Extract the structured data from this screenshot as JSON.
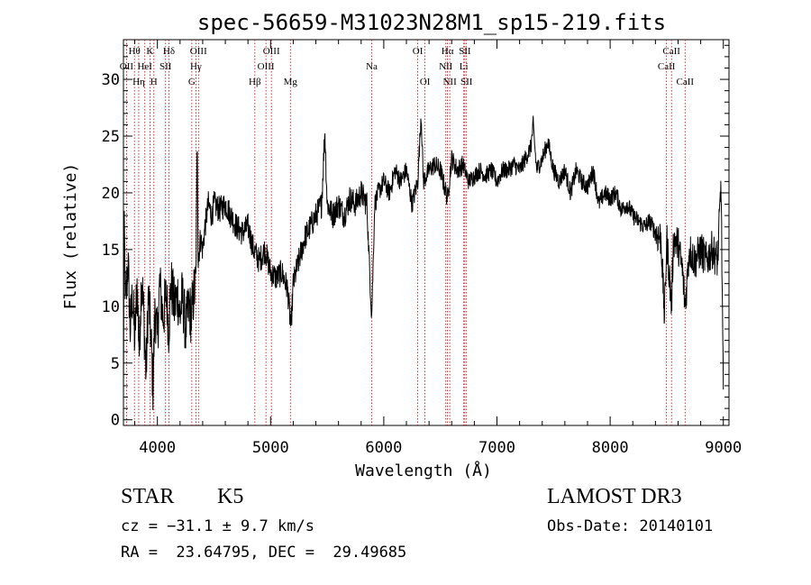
{
  "chart_data": {
    "type": "line",
    "title": "spec-56659-M31023N28M1_sp15-219.fits",
    "xlabel": "Wavelength (Å)",
    "ylabel": "Flux (relative)",
    "xlim": [
      3700,
      9050
    ],
    "ylim": [
      -0.5,
      33.5
    ],
    "xticks": [
      4000,
      5000,
      6000,
      7000,
      8000,
      9000
    ],
    "yticks": [
      0,
      5,
      10,
      15,
      20,
      25,
      30
    ],
    "grid": false,
    "line_color": "#000000",
    "marker_color": "#c00000",
    "series": [
      {
        "name": "flux",
        "anchors": [
          [
            3700,
            1
          ],
          [
            3705,
            17
          ],
          [
            3720,
            10
          ],
          [
            3740,
            14
          ],
          [
            3760,
            8
          ],
          [
            3780,
            11
          ],
          [
            3800,
            7
          ],
          [
            3820,
            12
          ],
          [
            3840,
            6
          ],
          [
            3860,
            13
          ],
          [
            3880,
            9
          ],
          [
            3900,
            4
          ],
          [
            3920,
            11
          ],
          [
            3940,
            8
          ],
          [
            3960,
            3
          ],
          [
            3980,
            10
          ],
          [
            4000,
            7
          ],
          [
            4020,
            12
          ],
          [
            4050,
            9
          ],
          [
            4080,
            11
          ],
          [
            4100,
            8
          ],
          [
            4120,
            12
          ],
          [
            4150,
            10
          ],
          [
            4180,
            11
          ],
          [
            4200,
            9
          ],
          [
            4220,
            11
          ],
          [
            4250,
            8
          ],
          [
            4280,
            10
          ],
          [
            4300,
            9
          ],
          [
            4320,
            11
          ],
          [
            4340,
            12
          ],
          [
            4352,
            25
          ],
          [
            4360,
            14
          ],
          [
            4380,
            16
          ],
          [
            4400,
            15
          ],
          [
            4420,
            17
          ],
          [
            4450,
            19
          ],
          [
            4480,
            18
          ],
          [
            4500,
            19
          ],
          [
            4550,
            18.5
          ],
          [
            4600,
            19
          ],
          [
            4650,
            18
          ],
          [
            4700,
            17
          ],
          [
            4750,
            16.5
          ],
          [
            4800,
            17
          ],
          [
            4850,
            15
          ],
          [
            4900,
            14
          ],
          [
            4950,
            15
          ],
          [
            5000,
            13
          ],
          [
            5050,
            12.5
          ],
          [
            5100,
            13
          ],
          [
            5150,
            11.5
          ],
          [
            5180,
            8
          ],
          [
            5200,
            12
          ],
          [
            5250,
            14
          ],
          [
            5300,
            16
          ],
          [
            5350,
            17
          ],
          [
            5400,
            18
          ],
          [
            5450,
            19
          ],
          [
            5480,
            25.5
          ],
          [
            5500,
            19
          ],
          [
            5550,
            18
          ],
          [
            5600,
            19
          ],
          [
            5650,
            18
          ],
          [
            5700,
            19.5
          ],
          [
            5750,
            19
          ],
          [
            5800,
            20
          ],
          [
            5850,
            19
          ],
          [
            5893,
            9
          ],
          [
            5920,
            19
          ],
          [
            5950,
            20
          ],
          [
            6000,
            21
          ],
          [
            6050,
            20
          ],
          [
            6100,
            22
          ],
          [
            6150,
            21
          ],
          [
            6200,
            22
          ],
          [
            6250,
            19
          ],
          [
            6300,
            21
          ],
          [
            6330,
            27
          ],
          [
            6350,
            21
          ],
          [
            6400,
            22
          ],
          [
            6450,
            22.5
          ],
          [
            6500,
            22
          ],
          [
            6563,
            19.5
          ],
          [
            6600,
            23
          ],
          [
            6650,
            22
          ],
          [
            6700,
            22.5
          ],
          [
            6750,
            21
          ],
          [
            6800,
            21.5
          ],
          [
            6850,
            22
          ],
          [
            6900,
            21.5
          ],
          [
            6950,
            22
          ],
          [
            7000,
            21
          ],
          [
            7050,
            22
          ],
          [
            7100,
            22
          ],
          [
            7150,
            22.5
          ],
          [
            7200,
            22
          ],
          [
            7250,
            23
          ],
          [
            7300,
            24
          ],
          [
            7320,
            26
          ],
          [
            7350,
            22
          ],
          [
            7400,
            23
          ],
          [
            7450,
            24.5
          ],
          [
            7500,
            22
          ],
          [
            7550,
            21
          ],
          [
            7600,
            22
          ],
          [
            7650,
            20
          ],
          [
            7700,
            22
          ],
          [
            7750,
            21
          ],
          [
            7800,
            20.5
          ],
          [
            7850,
            22
          ],
          [
            7900,
            19
          ],
          [
            7950,
            20
          ],
          [
            8000,
            19.5
          ],
          [
            8050,
            20
          ],
          [
            8100,
            18.5
          ],
          [
            8150,
            19
          ],
          [
            8200,
            18
          ],
          [
            8250,
            17.5
          ],
          [
            8300,
            17
          ],
          [
            8350,
            17.5
          ],
          [
            8400,
            16.5
          ],
          [
            8450,
            16
          ],
          [
            8480,
            9
          ],
          [
            8500,
            16
          ],
          [
            8542,
            10
          ],
          [
            8560,
            16
          ],
          [
            8600,
            15.5
          ],
          [
            8640,
            13
          ],
          [
            8662,
            10
          ],
          [
            8700,
            15
          ],
          [
            8750,
            14
          ],
          [
            8800,
            15
          ],
          [
            8850,
            14
          ],
          [
            8900,
            15
          ],
          [
            8950,
            14
          ],
          [
            8980,
            21
          ],
          [
            9000,
            2
          ]
        ],
        "noise": [
          {
            "from": 3700,
            "to": 4340,
            "amp": 2.6
          },
          {
            "from": 4340,
            "to": 5850,
            "amp": 1.2
          },
          {
            "from": 5850,
            "to": 6700,
            "amp": 0.9
          },
          {
            "from": 6700,
            "to": 8400,
            "amp": 0.8
          },
          {
            "from": 8400,
            "to": 9000,
            "amp": 1.7
          }
        ]
      }
    ],
    "line_markers": [
      {
        "wavelength": 3797,
        "label": "Hθ",
        "row": 0
      },
      {
        "wavelength": 3727,
        "label": "OII",
        "row": 1
      },
      {
        "wavelength": 3835,
        "label": "Hη",
        "row": 2
      },
      {
        "wavelength": 3889,
        "label": "HeI",
        "row": 1
      },
      {
        "wavelength": 3934,
        "label": "K",
        "row": 0
      },
      {
        "wavelength": 3969,
        "label": "H",
        "row": 2
      },
      {
        "wavelength": 4072,
        "label": "SII",
        "row": 1
      },
      {
        "wavelength": 4102,
        "label": "Hδ",
        "row": 0
      },
      {
        "wavelength": 4304,
        "label": "G",
        "row": 2
      },
      {
        "wavelength": 4340,
        "label": "Hγ",
        "row": 1
      },
      {
        "wavelength": 4363,
        "label": "OIII",
        "row": 0
      },
      {
        "wavelength": 4861,
        "label": "Hβ",
        "row": 2
      },
      {
        "wavelength": 4959,
        "label": "OIII",
        "row": 1
      },
      {
        "wavelength": 5007,
        "label": "OIII",
        "row": 0
      },
      {
        "wavelength": 5175,
        "label": "Mg",
        "row": 2
      },
      {
        "wavelength": 5893,
        "label": "Na",
        "row": 1
      },
      {
        "wavelength": 6300,
        "label": "OI",
        "row": 0
      },
      {
        "wavelength": 6364,
        "label": "OI",
        "row": 2
      },
      {
        "wavelength": 6548,
        "label": "NII",
        "row": 1
      },
      {
        "wavelength": 6563,
        "label": "Hα",
        "row": 0
      },
      {
        "wavelength": 6583,
        "label": "NII",
        "row": 2
      },
      {
        "wavelength": 6707,
        "label": "Li",
        "row": 1
      },
      {
        "wavelength": 6716,
        "label": "SII",
        "row": 0
      },
      {
        "wavelength": 6731,
        "label": "SII",
        "row": 2
      },
      {
        "wavelength": 8498,
        "label": "CaII",
        "row": 1
      },
      {
        "wavelength": 8542,
        "label": "CaII",
        "row": 0
      },
      {
        "wavelength": 8662,
        "label": "CaII",
        "row": 2
      }
    ]
  },
  "info": {
    "class_label": "STAR",
    "subclass": "K5",
    "survey": "LAMOST DR3",
    "cz": "cz = −31.1 ± 9.7 km/s",
    "obs_date": "Obs-Date: 20140101",
    "coords": "RA =  23.64795, DEC =  29.49685"
  }
}
